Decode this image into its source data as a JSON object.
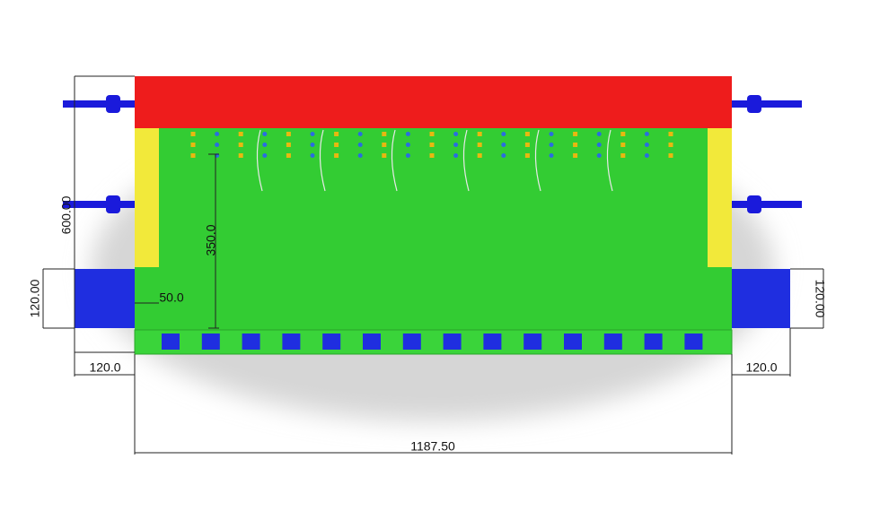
{
  "dimensions": {
    "overall_height": "600.00",
    "left_block_height": "120.00",
    "right_block_height": "120.00",
    "inner_depth": "350.0",
    "wall_thickness": "50.0",
    "left_block_width": "120.0",
    "right_block_width": "120.0",
    "overall_width": "1187.50"
  }
}
